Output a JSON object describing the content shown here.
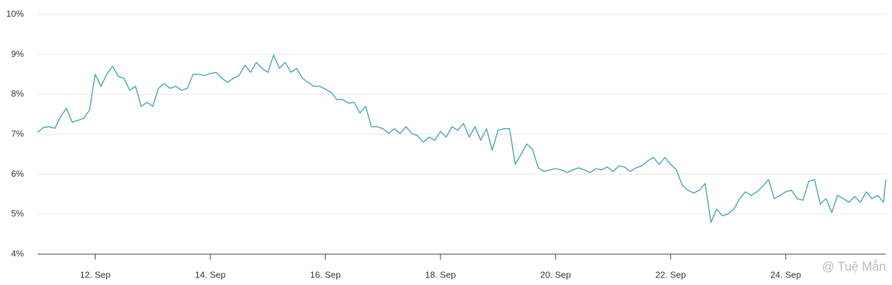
{
  "chart_data": {
    "type": "line",
    "x": [
      11.0,
      11.1,
      11.2,
      11.3,
      11.4,
      11.5,
      11.6,
      11.7,
      11.8,
      11.9,
      12.0,
      12.1,
      12.2,
      12.3,
      12.4,
      12.5,
      12.6,
      12.7,
      12.8,
      12.9,
      13.0,
      13.1,
      13.2,
      13.3,
      13.4,
      13.5,
      13.6,
      13.7,
      13.8,
      13.9,
      14.0,
      14.1,
      14.2,
      14.3,
      14.4,
      14.5,
      14.6,
      14.7,
      14.8,
      14.9,
      15.0,
      15.1,
      15.2,
      15.3,
      15.4,
      15.5,
      15.6,
      15.7,
      15.8,
      15.9,
      16.0,
      16.1,
      16.2,
      16.3,
      16.4,
      16.5,
      16.6,
      16.7,
      16.8,
      16.9,
      17.0,
      17.1,
      17.2,
      17.3,
      17.4,
      17.5,
      17.6,
      17.7,
      17.8,
      17.9,
      18.0,
      18.1,
      18.2,
      18.3,
      18.4,
      18.5,
      18.6,
      18.7,
      18.8,
      18.9,
      19.0,
      19.1,
      19.2,
      19.3,
      19.4,
      19.5,
      19.6,
      19.7,
      19.8,
      19.9,
      20.0,
      20.1,
      20.2,
      20.3,
      20.4,
      20.5,
      20.6,
      20.7,
      20.8,
      20.9,
      21.0,
      21.1,
      21.2,
      21.3,
      21.4,
      21.5,
      21.6,
      21.7,
      21.8,
      21.9,
      22.0,
      22.1,
      22.2,
      22.3,
      22.4,
      22.5,
      22.6,
      22.7,
      22.8,
      22.9,
      23.0,
      23.1,
      23.2,
      23.3,
      23.4,
      23.5,
      23.6,
      23.7,
      23.8,
      23.9,
      24.0,
      24.1,
      24.2,
      24.3,
      24.4,
      24.5,
      24.6,
      24.7,
      24.8,
      24.9,
      25.0,
      25.1,
      25.2,
      25.3,
      25.4,
      25.5,
      25.6,
      25.7,
      25.74
    ],
    "series": [
      {
        "color": "#4aa3b5",
        "values": [
          7.05,
          7.17,
          7.19,
          7.15,
          7.45,
          7.65,
          7.3,
          7.35,
          7.4,
          7.6,
          8.5,
          8.2,
          8.5,
          8.7,
          8.45,
          8.4,
          8.1,
          8.2,
          7.7,
          7.8,
          7.7,
          8.15,
          8.27,
          8.15,
          8.2,
          8.1,
          8.15,
          8.5,
          8.5,
          8.47,
          8.52,
          8.55,
          8.4,
          8.3,
          8.4,
          8.47,
          8.73,
          8.55,
          8.8,
          8.65,
          8.55,
          8.98,
          8.65,
          8.8,
          8.55,
          8.65,
          8.4,
          8.3,
          8.2,
          8.2,
          8.13,
          8.05,
          7.87,
          7.87,
          7.78,
          7.8,
          7.53,
          7.7,
          7.19,
          7.19,
          7.14,
          7.02,
          7.14,
          7.02,
          7.19,
          7.02,
          6.97,
          6.8,
          6.93,
          6.85,
          7.07,
          6.93,
          7.19,
          7.1,
          7.27,
          6.93,
          7.19,
          6.85,
          7.14,
          6.6,
          7.1,
          7.14,
          7.14,
          6.25,
          6.5,
          6.76,
          6.62,
          6.16,
          6.07,
          6.11,
          6.14,
          6.11,
          6.04,
          6.11,
          6.16,
          6.11,
          6.04,
          6.14,
          6.11,
          6.18,
          6.07,
          6.21,
          6.18,
          6.07,
          6.16,
          6.21,
          6.33,
          6.42,
          6.25,
          6.42,
          6.25,
          6.11,
          5.73,
          5.6,
          5.53,
          5.6,
          5.77,
          4.79,
          5.13,
          4.96,
          5.01,
          5.13,
          5.39,
          5.56,
          5.47,
          5.56,
          5.7,
          5.87,
          5.39,
          5.47,
          5.56,
          5.6,
          5.39,
          5.35,
          5.82,
          5.87,
          5.25,
          5.39,
          5.04,
          5.47,
          5.39,
          5.3,
          5.44,
          5.3,
          5.56,
          5.39,
          5.47,
          5.3,
          5.87
        ]
      }
    ],
    "xlim": [
      11.0,
      25.74
    ],
    "xticks": [
      {
        "value": 12,
        "label": "12. Sep"
      },
      {
        "value": 14,
        "label": "14. Sep"
      },
      {
        "value": 16,
        "label": "16. Sep"
      },
      {
        "value": 18,
        "label": "18. Sep"
      },
      {
        "value": 20,
        "label": "20. Sep"
      },
      {
        "value": 22,
        "label": "22. Sep"
      },
      {
        "value": 24,
        "label": "24. Sep"
      }
    ],
    "ylim": [
      4,
      10
    ],
    "yticks": [
      {
        "value": 4,
        "label": "4%"
      },
      {
        "value": 5,
        "label": "5%"
      },
      {
        "value": 6,
        "label": "6%"
      },
      {
        "value": 7,
        "label": "7%"
      },
      {
        "value": 8,
        "label": "8%"
      },
      {
        "value": 9,
        "label": "9%"
      },
      {
        "value": 10,
        "label": "10%"
      }
    ],
    "grid": true,
    "watermark": "@ Tuệ Mẫn"
  }
}
